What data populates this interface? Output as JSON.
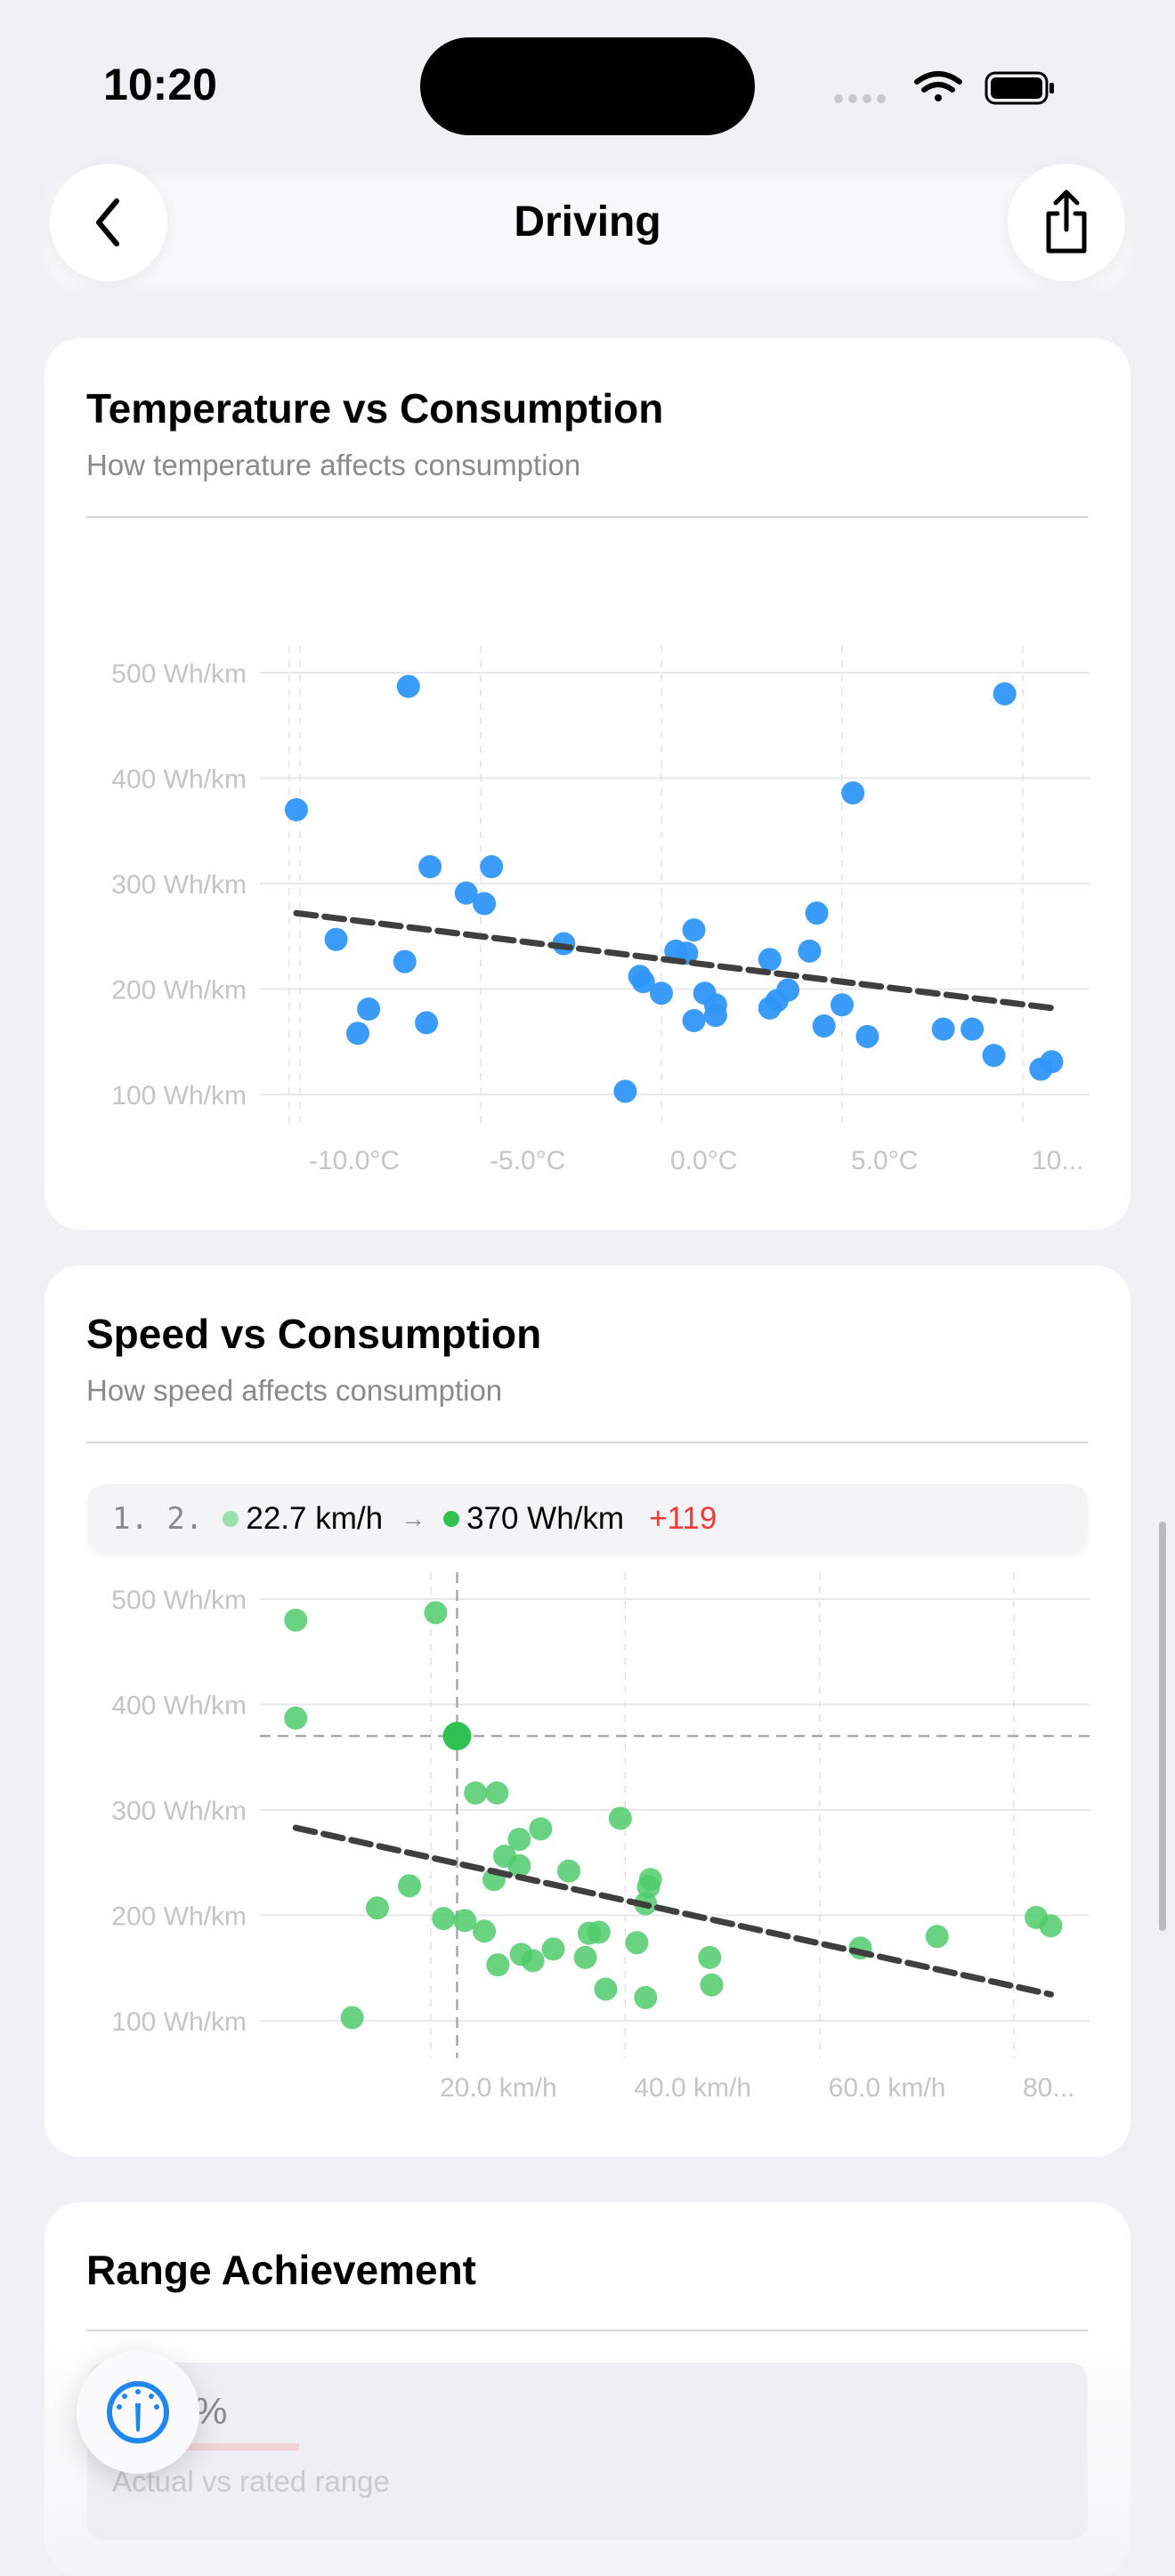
{
  "status_bar": {
    "time": "10:20"
  },
  "nav": {
    "title": "Driving",
    "back_icon": "chevron-left-icon",
    "share_icon": "share-icon"
  },
  "cards": {
    "temperature": {
      "title": "Temperature vs Consumption",
      "subtitle": "How temperature affects consumption"
    },
    "speed": {
      "title": "Speed vs Consumption",
      "subtitle": "How speed affects consumption",
      "tooltip": {
        "index": "1. 2.",
        "x_value": "22.7 km/h",
        "arrow": "→",
        "y_value": "370 Wh/km",
        "delta": "+119"
      }
    },
    "range": {
      "title": "Range Achievement",
      "value": "%",
      "caption": "Actual vs rated range"
    }
  },
  "floating_button": {
    "icon": "gauge-icon"
  },
  "colors": {
    "blue": "#2F97F8",
    "green": "#4FCB6B",
    "green_highlight": "#2FC152",
    "trend": "#3F3F3F",
    "delta": "#F03A3A"
  },
  "chart_data": [
    {
      "type": "scatter",
      "title": "Temperature vs Consumption",
      "subtitle": "How temperature affects consumption",
      "xlim": [
        -10.5,
        11
      ],
      "ylim": [
        100,
        500
      ],
      "x_ticks": [
        "-10.0°C",
        "-5.0°C",
        "0.0°C",
        "5.0°C",
        "10..."
      ],
      "x_tick_values": [
        -10,
        -5,
        0,
        5,
        10
      ],
      "y_ticks": [
        "500 Wh/km",
        "400 Wh/km",
        "300 Wh/km",
        "200 Wh/km",
        "100 Wh/km"
      ],
      "y_tick_values": [
        500,
        400,
        300,
        200,
        100
      ],
      "grid": true,
      "points": [
        [
          -10.1,
          370
        ],
        [
          -7.0,
          487
        ],
        [
          -6.4,
          316
        ],
        [
          -4.7,
          316
        ],
        [
          -5.4,
          291
        ],
        [
          -4.9,
          281
        ],
        [
          -9.0,
          247
        ],
        [
          -7.1,
          226
        ],
        [
          -8.1,
          181
        ],
        [
          -8.4,
          158
        ],
        [
          -6.5,
          168
        ],
        [
          -2.7,
          243
        ],
        [
          -0.6,
          212
        ],
        [
          -0.5,
          207
        ],
        [
          0.0,
          196
        ],
        [
          -1.0,
          103
        ],
        [
          0.9,
          256
        ],
        [
          0.4,
          236
        ],
        [
          0.7,
          234
        ],
        [
          1.2,
          196
        ],
        [
          1.5,
          185
        ],
        [
          1.5,
          175
        ],
        [
          0.9,
          170
        ],
        [
          3.0,
          228
        ],
        [
          3.0,
          182
        ],
        [
          3.2,
          189
        ],
        [
          3.5,
          199
        ],
        [
          4.1,
          236
        ],
        [
          4.3,
          272
        ],
        [
          5.3,
          386
        ],
        [
          4.5,
          165
        ],
        [
          5.0,
          185
        ],
        [
          5.7,
          155
        ],
        [
          7.8,
          162
        ],
        [
          8.6,
          162
        ],
        [
          9.2,
          137
        ],
        [
          9.5,
          480
        ],
        [
          10.5,
          124
        ],
        [
          10.8,
          131
        ]
      ],
      "trend": [
        [
          -10.1,
          272
        ],
        [
          10.8,
          182
        ]
      ]
    },
    {
      "type": "scatter",
      "title": "Speed vs Consumption",
      "subtitle": "How speed affects consumption",
      "xlim": [
        0,
        83
      ],
      "ylim": [
        100,
        500
      ],
      "x_ticks": [
        "20.0 km/h",
        "40.0 km/h",
        "60.0 km/h",
        "80..."
      ],
      "x_tick_values": [
        20,
        40,
        60,
        80
      ],
      "y_ticks": [
        "500 Wh/km",
        "400 Wh/km",
        "300 Wh/km",
        "200 Wh/km",
        "100 Wh/km"
      ],
      "y_tick_values": [
        500,
        400,
        300,
        200,
        100
      ],
      "grid": true,
      "points": [
        [
          6.1,
          480
        ],
        [
          6.1,
          387
        ],
        [
          20.5,
          487
        ],
        [
          24.6,
          316
        ],
        [
          26.8,
          316
        ],
        [
          39.5,
          292
        ],
        [
          31.3,
          282
        ],
        [
          29.1,
          272
        ],
        [
          27.6,
          256
        ],
        [
          29.1,
          247
        ],
        [
          26.5,
          234
        ],
        [
          34.2,
          242
        ],
        [
          42.6,
          234
        ],
        [
          42.4,
          227
        ],
        [
          42.1,
          211
        ],
        [
          17.8,
          228
        ],
        [
          14.5,
          207
        ],
        [
          21.3,
          197
        ],
        [
          23.5,
          195
        ],
        [
          25.5,
          185
        ],
        [
          36.3,
          183
        ],
        [
          37.3,
          184
        ],
        [
          41.2,
          174
        ],
        [
          29.3,
          163
        ],
        [
          30.5,
          157
        ],
        [
          32.6,
          168
        ],
        [
          35.9,
          160
        ],
        [
          26.9,
          153
        ],
        [
          48.7,
          160
        ],
        [
          48.9,
          134
        ],
        [
          38.0,
          130
        ],
        [
          42.1,
          122
        ],
        [
          11.9,
          103
        ],
        [
          64.2,
          169
        ],
        [
          72.1,
          180
        ],
        [
          82.3,
          198
        ],
        [
          83.8,
          190
        ]
      ],
      "selected_point": [
        22.7,
        370
      ],
      "trend": [
        [
          6.1,
          283
        ],
        [
          83.8,
          125
        ]
      ]
    }
  ]
}
